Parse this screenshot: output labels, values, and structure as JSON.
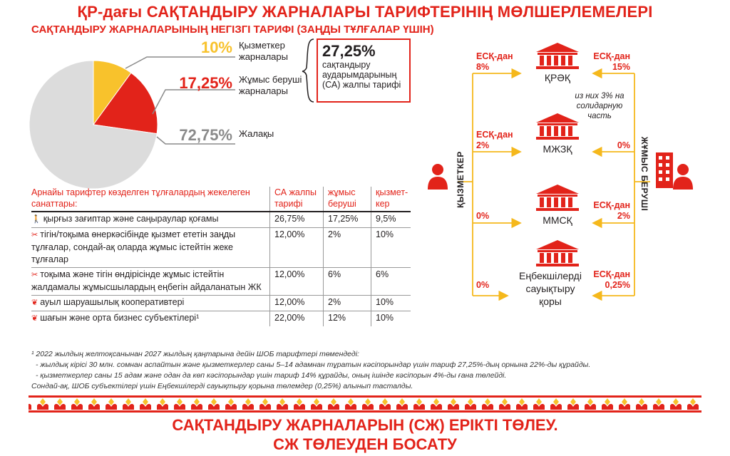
{
  "title": "ҚР-дағы САҚТАНДЫРУ ЖАРНАЛАРЫ ТАРИФТЕРІНІҢ МӨЛШЕРЛЕМЕЛЕРІ",
  "subtitle": "САҚТАНДЫРУ ЖАРНАЛАРЫНЫҢ НЕГІЗГІ ТАРИФІ (ЗАҢДЫ ТҰЛҒАЛАР ҮШІН)",
  "chart_data": {
    "type": "pie",
    "slices": [
      {
        "label": "Қызметкер жарналары",
        "value": 10,
        "display": "10%",
        "color": "#f8c22c"
      },
      {
        "label": "Жұмыс беруші жарналары",
        "value": 17.25,
        "display": "17,25%",
        "color": "#e2231a"
      },
      {
        "label": "Жалақы",
        "value": 72.75,
        "display": "72,75%",
        "color": "#dcdcdc"
      }
    ]
  },
  "pie_labels": {
    "employee_pct": "10%",
    "employee_desc_1": "Қызметкер",
    "employee_desc_2": "жарналары",
    "employer_pct": "17,25%",
    "employer_desc_1": "Жұмыс беруші",
    "employer_desc_2": "жарналары",
    "salary_pct": "72,75%",
    "salary_desc": "Жалақы"
  },
  "total_box": {
    "value": "27,25%",
    "line1": "сақтандыру",
    "line2": "аударымдарының",
    "line3": "(СА) жалпы тарифі"
  },
  "table": {
    "headers": [
      "Арнайы тарифтер көзделген тұлғалардың жекелеген санаттары:",
      "СА жалпы тарифі",
      "жұмыс беруші",
      "қызмет-кер"
    ],
    "rows": [
      {
        "icon": "person-icon",
        "glyph": "🚶",
        "name": "қырғыз зағиптар және саңыраулар қоғамы",
        "total": "26,75%",
        "employer": "17,25%",
        "employee": "9,5%"
      },
      {
        "icon": "scissors-icon",
        "glyph": "✂",
        "name": "тігін/тоқыма өнеркәсібінде қызмет ететін заңды тұлғалар, сондай-ақ оларда жұмыс істейтін жеке тұлғалар",
        "total": "12,00%",
        "employer": "2%",
        "employee": "10%"
      },
      {
        "icon": "scissors-icon",
        "glyph": "✂",
        "name": "тоқыма және тігін өндірісінде жұмыс істейтін жалдамалы жұмысшылардың еңбегін айдаланатын ЖК",
        "total": "12,00%",
        "employer": "6%",
        "employee": "6%"
      },
      {
        "icon": "leaf-icon",
        "glyph": "❦",
        "name": "ауыл шаруашылық кооперативтері",
        "total": "12,00%",
        "employer": "2%",
        "employee": "10%"
      },
      {
        "icon": "leaf-icon",
        "glyph": "❦",
        "name": "шағын және орта бизнес субъектілері¹",
        "total": "22,00%",
        "employer": "12%",
        "employee": "10%"
      }
    ]
  },
  "footnote": [
    "¹ 2022 жылдың желтоқсанынан 2027 жылдың қаңтарына дейін ШОБ тарифтері төмендеді:",
    "- жылдық кірісі 30 млн. сомнан аспайтын және қызметкерлер саны 5–14 адамнан тұратын кәсіпорындар үшін тариф 27,25%-дың орнына 22%-ды құрайды.",
    "- қызметкерлер саны 15 адам және одан да көп кәсіпорындар үшін тариф 14% құрайды, оның ішінде кәсіпорын 4%-ды ғана төлейді.",
    "Сондай-ақ, ШОБ субъектілері үшін Еңбекшілерді сауықтыру қорына төлемдер (0,25%) алынып тасталды."
  ],
  "flow": {
    "employee_label": "ҚЫЗМЕТКЕР",
    "employer_label": "ЖҰМЫС БЕРУШІ",
    "funds": [
      {
        "name": "ҚРӘҚ",
        "left_1": "ЕСҚ-дан",
        "left_2": "8%",
        "right_1": "ЕСҚ-дан",
        "right_2": "15%",
        "note": "из них 3% на солидарную часть"
      },
      {
        "name": "МЖЗҚ",
        "left_1": "ЕСҚ-дан",
        "left_2": "2%",
        "right_1": "",
        "right_2": "0%"
      },
      {
        "name": "ММСҚ",
        "left_1": "",
        "left_2": "0%",
        "right_1": "ЕСҚ-дан",
        "right_2": "2%"
      },
      {
        "name_1": "Еңбекшілерді",
        "name_2": "сауықтыру",
        "name_3": "қоры",
        "left_1": "",
        "left_2": "0%",
        "right_1": "ЕСҚ-дан",
        "right_2": "0,25%"
      }
    ],
    "note_1": "из них 3% на",
    "note_2": "солидарную",
    "note_3": "часть"
  },
  "bottom": {
    "line1": "САҚТАНДЫРУ ЖАРНАЛАРЫН (СЖ) ЕРІКТІ ТӨЛЕУ.",
    "line2": "СЖ ТӨЛЕУДЕН БОСАТУ"
  },
  "colors": {
    "accent": "#e2231a",
    "yellow": "#f8c22c",
    "grey": "#dcdcdc",
    "flow_line": "#f5b81c"
  }
}
